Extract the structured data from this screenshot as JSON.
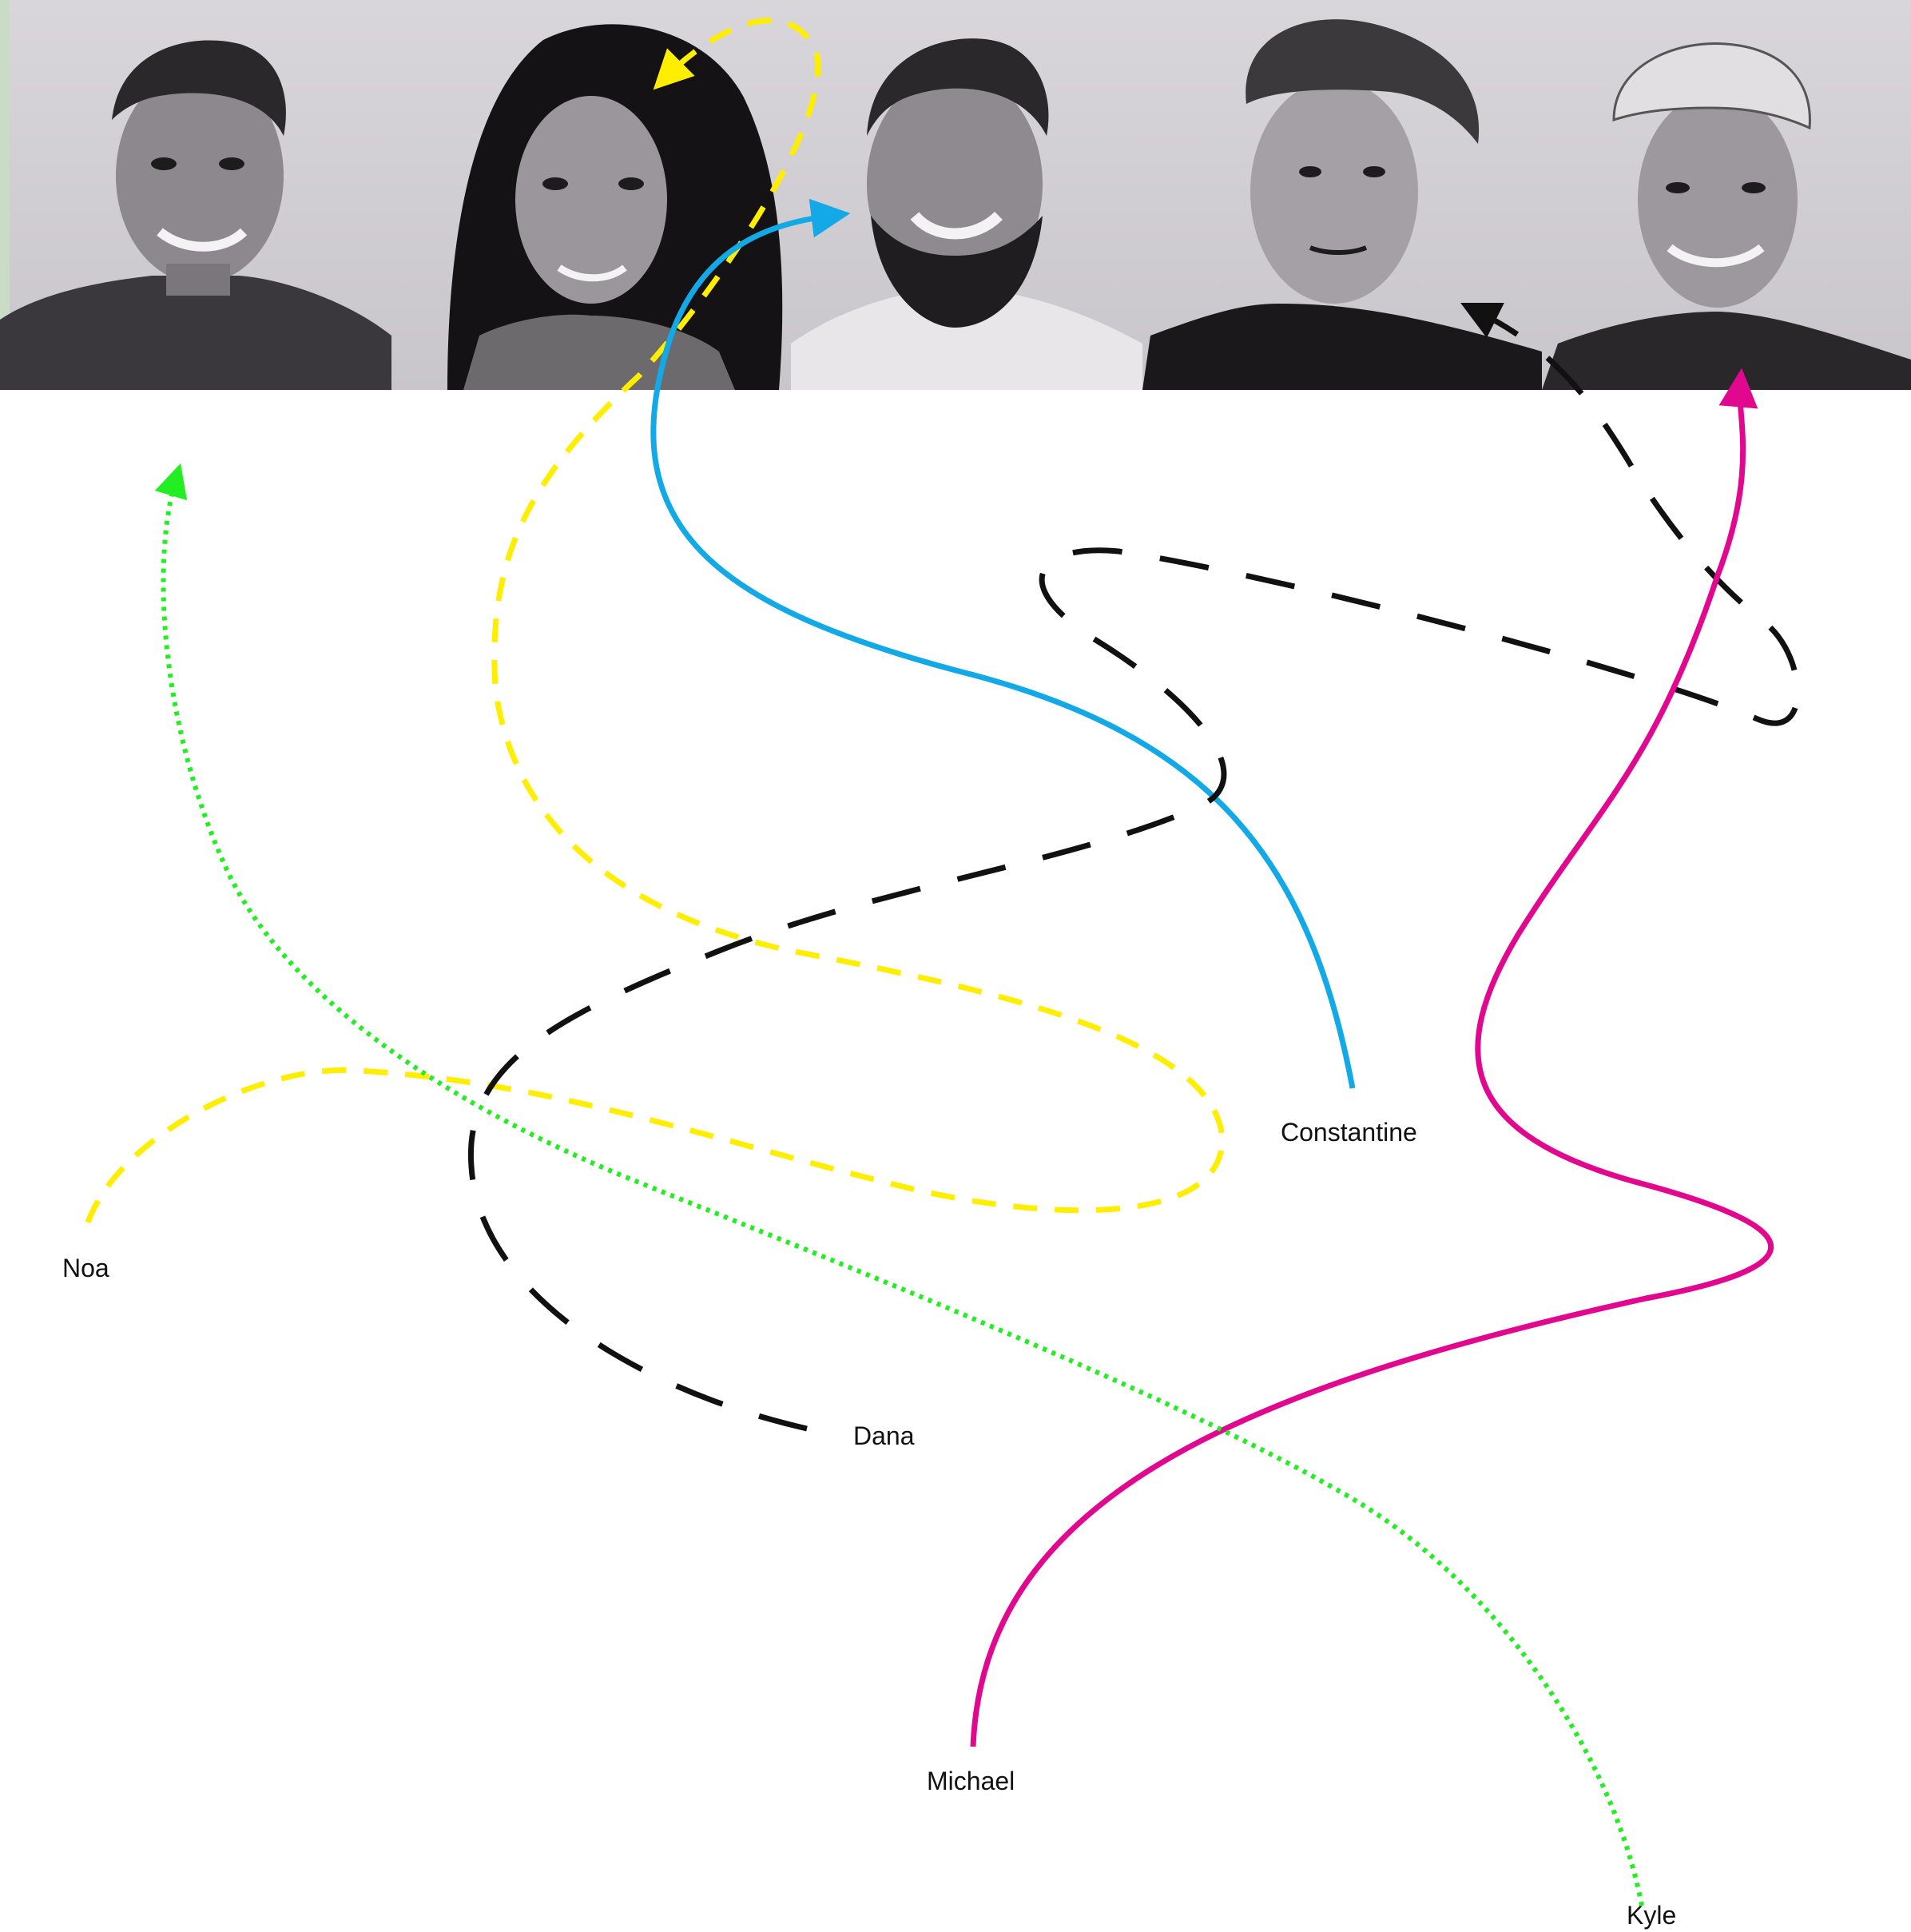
{
  "portraits": [
    {
      "id": "p1",
      "alt": "portrait"
    },
    {
      "id": "p2",
      "alt": "portrait"
    },
    {
      "id": "p3",
      "alt": "portrait"
    },
    {
      "id": "p4",
      "alt": "portrait"
    },
    {
      "id": "p5",
      "alt": "portrait"
    }
  ],
  "people": [
    {
      "name": "Noa",
      "color": "#ffee00",
      "style": "dashed",
      "target_portrait": "p2"
    },
    {
      "name": "Constantine",
      "color": "#12a9e6",
      "style": "solid",
      "target_portrait": "p3"
    },
    {
      "name": "Dana",
      "color": "#111111",
      "style": "long-dashed",
      "target_portrait": "p4"
    },
    {
      "name": "Michael",
      "color": "#e1088f",
      "style": "solid",
      "target_portrait": "p5"
    },
    {
      "name": "Kyle",
      "color": "#22ee22",
      "style": "dotted",
      "target_portrait": "p1"
    }
  ],
  "colors": {
    "background": "#ffffff",
    "photo_bg": "#d9d6db"
  }
}
